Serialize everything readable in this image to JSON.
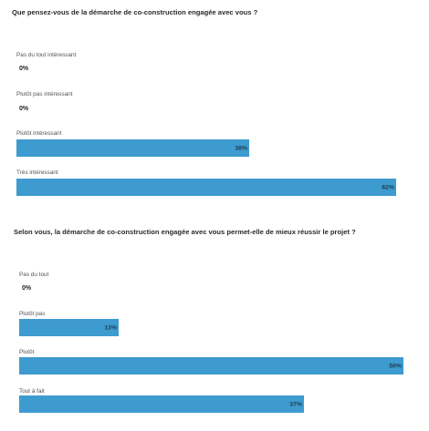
{
  "bar_color": "#3d9bcf",
  "chart_data": [
    {
      "type": "bar",
      "title": "Que pensez-vous de la démarche de co-construction engagée avec vous ?",
      "categories": [
        "Pas du tout intéressant",
        "Plutôt pas intéressant",
        "Plutôt intéressant",
        "Très intéressant"
      ],
      "values": [
        0,
        0,
        38,
        62
      ],
      "value_labels": [
        "0%",
        "0%",
        "38%",
        "62%"
      ],
      "xlim": [
        0,
        62
      ]
    },
    {
      "type": "bar",
      "title": "Selon vous, la démarche de co-construction engagée avec vous permet-elle de mieux réussir le projet ?",
      "categories": [
        "Pas du tout",
        "Plutôt pas",
        "Plutôt",
        "Tout à fait"
      ],
      "values": [
        0,
        13,
        50,
        37
      ],
      "value_labels": [
        "0%",
        "13%",
        "50%",
        "37%"
      ],
      "xlim": [
        0,
        50
      ]
    }
  ]
}
